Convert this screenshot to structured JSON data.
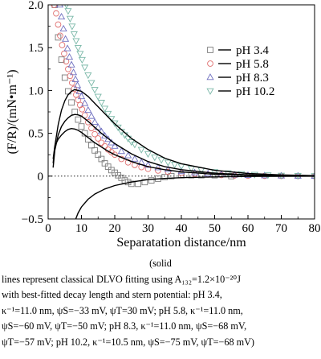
{
  "chart_data": {
    "type": "scatter",
    "xlabel": "Separatation distance/nm",
    "ylabel": "(F/R)/(mN•m⁻¹)",
    "xlim": [
      0,
      80
    ],
    "ylim": [
      -0.5,
      2.0
    ],
    "x_ticks": [
      "0",
      "10",
      "20",
      "30",
      "40",
      "50",
      "60",
      "70",
      "80"
    ],
    "y_ticks": [
      "−0.5",
      "0",
      "0.5",
      "1.0",
      "1.5",
      "2.0"
    ],
    "zero_line": "dotted",
    "legend_position": "top-right",
    "series": [
      {
        "name": "pH 3.4",
        "marker": "square",
        "color": "#7a7a7a",
        "points": [
          [
            2,
            2.0
          ],
          [
            3,
            1.62
          ],
          [
            4,
            1.36
          ],
          [
            5,
            1.15
          ],
          [
            6,
            0.99
          ],
          [
            7,
            0.86
          ],
          [
            8,
            0.75
          ],
          [
            9,
            0.66
          ],
          [
            10,
            0.58
          ],
          [
            11,
            0.5
          ],
          [
            12,
            0.43
          ],
          [
            13,
            0.36
          ],
          [
            14,
            0.3
          ],
          [
            15,
            0.25
          ],
          [
            16,
            0.2
          ],
          [
            17,
            0.15
          ],
          [
            18,
            0.11
          ],
          [
            19,
            0.07
          ],
          [
            20,
            0.04
          ],
          [
            21,
            0.01
          ],
          [
            22,
            -0.02
          ],
          [
            23,
            -0.05
          ],
          [
            24,
            -0.07
          ],
          [
            25,
            -0.09
          ],
          [
            27,
            -0.09
          ],
          [
            29,
            -0.07
          ],
          [
            31,
            -0.05
          ],
          [
            33,
            -0.03
          ],
          [
            35,
            -0.01
          ],
          [
            37,
            0.0
          ],
          [
            40,
            0.01
          ],
          [
            43,
            0.01
          ],
          [
            46,
            0.01
          ],
          [
            50,
            0.01
          ],
          [
            55,
            0.0
          ]
        ],
        "fit": [
          [
            8.3,
            -0.5
          ],
          [
            9,
            -0.43
          ],
          [
            10,
            -0.36
          ],
          [
            12,
            -0.27
          ],
          [
            14,
            -0.21
          ],
          [
            17,
            -0.15
          ],
          [
            20,
            -0.11
          ],
          [
            25,
            -0.07
          ],
          [
            30,
            -0.04
          ],
          [
            35,
            -0.027
          ],
          [
            40,
            -0.018
          ],
          [
            50,
            -0.009
          ],
          [
            60,
            -0.004
          ],
          [
            70,
            -0.002
          ],
          [
            80,
            -0.001
          ]
        ]
      },
      {
        "name": "pH 5.8",
        "marker": "circle",
        "color": "#e07070",
        "points": [
          [
            1.8,
            2.0
          ],
          [
            2.4,
            1.9
          ],
          [
            3,
            1.77
          ],
          [
            3.6,
            1.64
          ],
          [
            4.2,
            1.53
          ],
          [
            4.8,
            1.43
          ],
          [
            5.4,
            1.34
          ],
          [
            6,
            1.25
          ],
          [
            6.6,
            1.17
          ],
          [
            7.2,
            1.09
          ],
          [
            7.8,
            1.02
          ],
          [
            8.4,
            0.95
          ],
          [
            9,
            0.89
          ],
          [
            9.6,
            0.83
          ],
          [
            10.2,
            0.78
          ],
          [
            11,
            0.71
          ],
          [
            12,
            0.63
          ],
          [
            13,
            0.56
          ],
          [
            14,
            0.49
          ],
          [
            15,
            0.44
          ],
          [
            16,
            0.39
          ],
          [
            17,
            0.35
          ],
          [
            18,
            0.31
          ],
          [
            19,
            0.28
          ],
          [
            20,
            0.25
          ],
          [
            22,
            0.2
          ],
          [
            24,
            0.16
          ],
          [
            26,
            0.13
          ],
          [
            28,
            0.105
          ],
          [
            30,
            0.085
          ],
          [
            33,
            0.065
          ],
          [
            36,
            0.05
          ],
          [
            40,
            0.035
          ],
          [
            44,
            0.025
          ],
          [
            48,
            0.018
          ],
          [
            52,
            0.012
          ],
          [
            56,
            0.008
          ],
          [
            60,
            0.005
          ],
          [
            65,
            0.003
          ],
          [
            70,
            0.002
          ],
          [
            75,
            0.001
          ],
          [
            80,
            0.0
          ]
        ],
        "fit": [
          [
            1.5,
            0.2
          ],
          [
            2,
            0.35
          ],
          [
            3,
            0.43
          ],
          [
            4,
            0.48
          ],
          [
            5,
            0.52
          ],
          [
            6,
            0.545
          ],
          [
            7,
            0.555
          ],
          [
            8,
            0.55
          ],
          [
            9,
            0.535
          ],
          [
            10,
            0.51
          ],
          [
            12,
            0.45
          ],
          [
            14,
            0.39
          ],
          [
            16,
            0.34
          ],
          [
            18,
            0.29
          ],
          [
            20,
            0.25
          ],
          [
            25,
            0.17
          ],
          [
            30,
            0.11
          ],
          [
            35,
            0.075
          ],
          [
            40,
            0.05
          ],
          [
            50,
            0.022
          ],
          [
            60,
            0.01
          ],
          [
            70,
            0.004
          ],
          [
            80,
            0.002
          ]
        ]
      },
      {
        "name": "pH 8.3",
        "marker": "triangle",
        "color": "#7070c0",
        "points": [
          [
            3.5,
            2.0
          ],
          [
            4,
            1.86
          ],
          [
            4.6,
            1.72
          ],
          [
            5.2,
            1.6
          ],
          [
            5.8,
            1.49
          ],
          [
            6.4,
            1.39
          ],
          [
            7,
            1.3
          ],
          [
            7.6,
            1.21
          ],
          [
            8.2,
            1.13
          ],
          [
            8.8,
            1.06
          ],
          [
            9.4,
            0.99
          ],
          [
            10,
            0.93
          ],
          [
            11,
            0.85
          ],
          [
            12,
            0.77
          ],
          [
            13,
            0.7
          ],
          [
            14,
            0.63
          ],
          [
            15,
            0.57
          ],
          [
            16,
            0.52
          ],
          [
            17,
            0.47
          ],
          [
            18,
            0.43
          ],
          [
            19,
            0.39
          ],
          [
            20,
            0.35
          ],
          [
            22,
            0.29
          ],
          [
            24,
            0.24
          ],
          [
            26,
            0.2
          ],
          [
            28,
            0.16
          ],
          [
            30,
            0.13
          ],
          [
            33,
            0.1
          ],
          [
            36,
            0.08
          ],
          [
            40,
            0.055
          ],
          [
            44,
            0.04
          ],
          [
            48,
            0.028
          ],
          [
            52,
            0.02
          ],
          [
            56,
            0.014
          ],
          [
            60,
            0.01
          ],
          [
            65,
            0.006
          ],
          [
            70,
            0.004
          ],
          [
            75,
            0.002
          ],
          [
            80,
            0.001
          ]
        ],
        "fit": [
          [
            1.5,
            0.1
          ],
          [
            2,
            0.3
          ],
          [
            3,
            0.48
          ],
          [
            4,
            0.58
          ],
          [
            5,
            0.64
          ],
          [
            6,
            0.68
          ],
          [
            7,
            0.71
          ],
          [
            8,
            0.72
          ],
          [
            9,
            0.715
          ],
          [
            10,
            0.7
          ],
          [
            12,
            0.64
          ],
          [
            14,
            0.57
          ],
          [
            16,
            0.5
          ],
          [
            18,
            0.44
          ],
          [
            20,
            0.38
          ],
          [
            25,
            0.26
          ],
          [
            30,
            0.17
          ],
          [
            35,
            0.11
          ],
          [
            40,
            0.075
          ],
          [
            50,
            0.034
          ],
          [
            60,
            0.015
          ],
          [
            70,
            0.007
          ],
          [
            80,
            0.003
          ]
        ]
      },
      {
        "name": "pH 10.2",
        "marker": "triangle-down",
        "color": "#7ab8a8",
        "points": [
          [
            5.5,
            2.0
          ],
          [
            6,
            1.93
          ],
          [
            6.6,
            1.84
          ],
          [
            7.2,
            1.75
          ],
          [
            7.8,
            1.66
          ],
          [
            8.4,
            1.58
          ],
          [
            9,
            1.5
          ],
          [
            9.6,
            1.43
          ],
          [
            10.2,
            1.36
          ],
          [
            11,
            1.27
          ],
          [
            12,
            1.18
          ],
          [
            13,
            1.09
          ],
          [
            14,
            1.01
          ],
          [
            15,
            0.93
          ],
          [
            16,
            0.86
          ],
          [
            17,
            0.79
          ],
          [
            18,
            0.73
          ],
          [
            19,
            0.67
          ],
          [
            20,
            0.62
          ],
          [
            21,
            0.57
          ],
          [
            22,
            0.52
          ],
          [
            23,
            0.48
          ],
          [
            24,
            0.44
          ],
          [
            25,
            0.4
          ],
          [
            26,
            0.37
          ],
          [
            28,
            0.31
          ],
          [
            30,
            0.26
          ],
          [
            32,
            0.22
          ],
          [
            34,
            0.19
          ],
          [
            36,
            0.16
          ],
          [
            38,
            0.135
          ],
          [
            40,
            0.115
          ],
          [
            43,
            0.09
          ],
          [
            46,
            0.07
          ],
          [
            50,
            0.05
          ],
          [
            54,
            0.036
          ],
          [
            58,
            0.026
          ],
          [
            62,
            0.018
          ],
          [
            66,
            0.012
          ],
          [
            70,
            0.008
          ],
          [
            75,
            0.005
          ],
          [
            80,
            0.003
          ]
        ],
        "fit": [
          [
            1.5,
            0.15
          ],
          [
            2,
            0.35
          ],
          [
            3,
            0.6
          ],
          [
            4,
            0.77
          ],
          [
            5,
            0.88
          ],
          [
            6,
            0.95
          ],
          [
            7,
            0.99
          ],
          [
            8,
            1.01
          ],
          [
            9,
            1.0
          ],
          [
            10,
            0.99
          ],
          [
            12,
            0.93
          ],
          [
            14,
            0.85
          ],
          [
            16,
            0.77
          ],
          [
            18,
            0.69
          ],
          [
            20,
            0.61
          ],
          [
            25,
            0.44
          ],
          [
            30,
            0.31
          ],
          [
            35,
            0.21
          ],
          [
            40,
            0.145
          ],
          [
            50,
            0.068
          ],
          [
            60,
            0.031
          ],
          [
            70,
            0.014
          ],
          [
            80,
            0.006
          ]
        ]
      }
    ]
  },
  "caption": {
    "line1": "(solid",
    "line2": "lines represent classical DLVO fitting using A₁₃₂=1.2×10⁻²⁰J",
    "line3": "with best-fitted decay length and stern potential: pH 3.4,",
    "line4": "κ⁻¹=11.0 nm, ψS=−33 mV, ψT=30 mV; pH 5.8, κ⁻¹=11.0 nm,",
    "line5": "ψS=−60 mV, ψT=−50 mV; pH 8.3, κ⁻¹=11.0 nm, ψS=−68 mV,",
    "line6": "ψT=−57 mV; pH 10.2, κ⁻¹=10.5 nm, ψS=−75 mV, ψT=−68 mV)"
  },
  "colors": {
    "axis": "#000000",
    "fit_line": "#000000"
  }
}
